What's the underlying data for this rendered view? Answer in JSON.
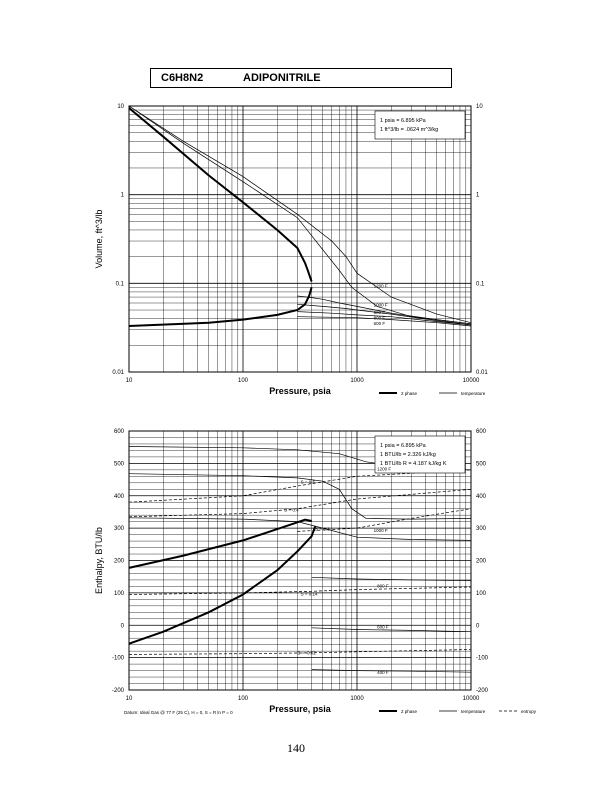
{
  "header": {
    "formula": "C6H8N2",
    "name": "ADIPONITRILE"
  },
  "page_number": "140",
  "chart_data": [
    {
      "type": "line",
      "log_x": true,
      "log_y": true,
      "xlim": [
        10,
        10000
      ],
      "ylim": [
        0.01,
        10
      ],
      "x_ticks": [
        "10",
        "100",
        "1000",
        "10000"
      ],
      "y_ticks": [
        "0.01",
        "0.1",
        "1",
        "10"
      ],
      "xlabel": "Pressure,  psia",
      "ylabel": "Volume, ft^3/lb",
      "grid": true,
      "notes": [
        "1 psia = 6.895 kPa",
        "1 ft^3/lb = .0624 m^3/kg"
      ],
      "legend": {
        "two_phase": "2 phase",
        "temperature": "temperature"
      },
      "isotherm_labels": [
        "1200 F",
        "1000 F",
        "900 F",
        "800 F",
        "600 F"
      ],
      "series": [
        {
          "kind": "2phase-vapor",
          "x": [
            10,
            20,
            50,
            100,
            200,
            300,
            350,
            370,
            400
          ],
          "y": [
            9.5,
            4.5,
            1.65,
            0.82,
            0.4,
            0.25,
            0.17,
            0.14,
            0.105
          ]
        },
        {
          "kind": "2phase-liquid",
          "x": [
            10,
            50,
            100,
            200,
            300,
            350,
            380,
            400
          ],
          "y": [
            0.033,
            0.036,
            0.039,
            0.044,
            0.05,
            0.058,
            0.072,
            0.09
          ]
        },
        {
          "kind": "isotherm",
          "x": [
            10,
            30,
            100,
            300,
            600,
            800,
            1000,
            2000,
            5000,
            10000
          ],
          "y": [
            10,
            4,
            1.6,
            0.6,
            0.3,
            0.2,
            0.13,
            0.07,
            0.045,
            0.036
          ]
        },
        {
          "kind": "isotherm",
          "x": [
            10,
            30,
            100,
            300,
            500,
            700,
            900,
            1500,
            3000,
            10000
          ],
          "y": [
            10,
            3.8,
            1.4,
            0.55,
            0.24,
            0.14,
            0.09,
            0.055,
            0.042,
            0.035
          ]
        },
        {
          "kind": "isotherm",
          "x": [
            300,
            400,
            500,
            700,
            1000,
            2000,
            5000,
            10000
          ],
          "y": [
            0.072,
            0.069,
            0.066,
            0.06,
            0.055,
            0.046,
            0.039,
            0.035
          ]
        },
        {
          "kind": "isotherm",
          "x": [
            300,
            500,
            800,
            1000,
            2000,
            5000,
            10000
          ],
          "y": [
            0.058,
            0.055,
            0.052,
            0.05,
            0.045,
            0.038,
            0.034
          ]
        },
        {
          "kind": "isotherm",
          "x": [
            300,
            600,
            1000,
            2000,
            5000,
            10000
          ],
          "y": [
            0.048,
            0.046,
            0.044,
            0.042,
            0.037,
            0.034
          ]
        },
        {
          "kind": "isotherm",
          "x": [
            300,
            1000,
            2000,
            5000,
            10000
          ],
          "y": [
            0.042,
            0.041,
            0.039,
            0.036,
            0.033
          ]
        }
      ]
    },
    {
      "type": "line",
      "log_x": true,
      "xlim": [
        10,
        10000
      ],
      "ylim": [
        -200,
        600
      ],
      "x_ticks": [
        "10",
        "100",
        "1000",
        "10000"
      ],
      "y_ticks": [
        "-200",
        "-100",
        "0",
        "100",
        "200",
        "300",
        "400",
        "500",
        "600"
      ],
      "xlabel": "Pressure,  psia",
      "ylabel": "Enthalpy, BTU/lb",
      "grid": true,
      "notes": [
        "1 psia = 6.895 kPa",
        "1 BTU/lb = 2.326 kJ/kg",
        "1 BTU/lb R = 4.187 kJ/kg K"
      ],
      "legend": {
        "two_phase": "2 phase",
        "temperature": "temperature",
        "entropy": "entropy"
      },
      "datum": "Datum: Ideal Gas @ 77 F (25 C), H = 0,  S = R ln P = 0",
      "isotherm_labels": [
        "1200 F",
        "1000 F",
        "800 F",
        "600 F",
        "400 F"
      ],
      "entropy_labels": [
        "S = 0.5",
        "S = 0.4",
        "S = 0.3",
        "S = 0.14",
        "S = -0.02"
      ],
      "series": [
        {
          "kind": "2phase-vapor",
          "x": [
            10,
            30,
            100,
            200,
            300,
            350,
            400
          ],
          "y": [
            177,
            215,
            262,
            297,
            318,
            326,
            322
          ]
        },
        {
          "kind": "2phase-liquid",
          "x": [
            10,
            20,
            50,
            100,
            200,
            300,
            400,
            430
          ],
          "y": [
            -57,
            -20,
            40,
            95,
            170,
            228,
            275,
            305
          ]
        },
        {
          "kind": "isotherm",
          "x": [
            10,
            100,
            300,
            700,
            1200,
            3000,
            10000
          ],
          "y": [
            552,
            548,
            542,
            530,
            505,
            485,
            480
          ]
        },
        {
          "kind": "isotherm",
          "x": [
            10,
            100,
            300,
            500,
            700,
            900,
            1200,
            3000,
            10000
          ],
          "y": [
            468,
            462,
            455,
            445,
            420,
            360,
            330,
            328,
            330
          ]
        },
        {
          "kind": "isotherm",
          "x": [
            10,
            100,
            300,
            500,
            1000,
            3000,
            10000
          ],
          "y": [
            332,
            328,
            320,
            300,
            272,
            265,
            262
          ]
        },
        {
          "kind": "isotherm",
          "x": [
            400,
            1000,
            3000,
            10000
          ],
          "y": [
            148,
            143,
            140,
            138
          ]
        },
        {
          "kind": "isotherm",
          "x": [
            400,
            1000,
            3000,
            10000
          ],
          "y": [
            -8,
            -13,
            -16,
            -20
          ]
        },
        {
          "kind": "isotherm",
          "x": [
            400,
            1000,
            3000,
            10000
          ],
          "y": [
            -137,
            -140,
            -142,
            -145
          ]
        },
        {
          "kind": "entropy",
          "x": [
            10,
            100,
            300,
            1000,
            10000
          ],
          "y": [
            380,
            400,
            430,
            460,
            480
          ]
        },
        {
          "kind": "entropy",
          "x": [
            10,
            100,
            300,
            1000,
            10000
          ],
          "y": [
            335,
            345,
            360,
            390,
            420
          ]
        },
        {
          "kind": "entropy",
          "x": [
            300,
            1000,
            3000,
            10000
          ],
          "y": [
            290,
            300,
            330,
            360
          ]
        },
        {
          "kind": "entropy",
          "x": [
            10,
            100,
            400,
            1000,
            10000
          ],
          "y": [
            95,
            100,
            105,
            110,
            118
          ]
        },
        {
          "kind": "entropy",
          "x": [
            10,
            100,
            400,
            1000,
            10000
          ],
          "y": [
            -90,
            -88,
            -85,
            -82,
            -75
          ]
        }
      ]
    }
  ]
}
